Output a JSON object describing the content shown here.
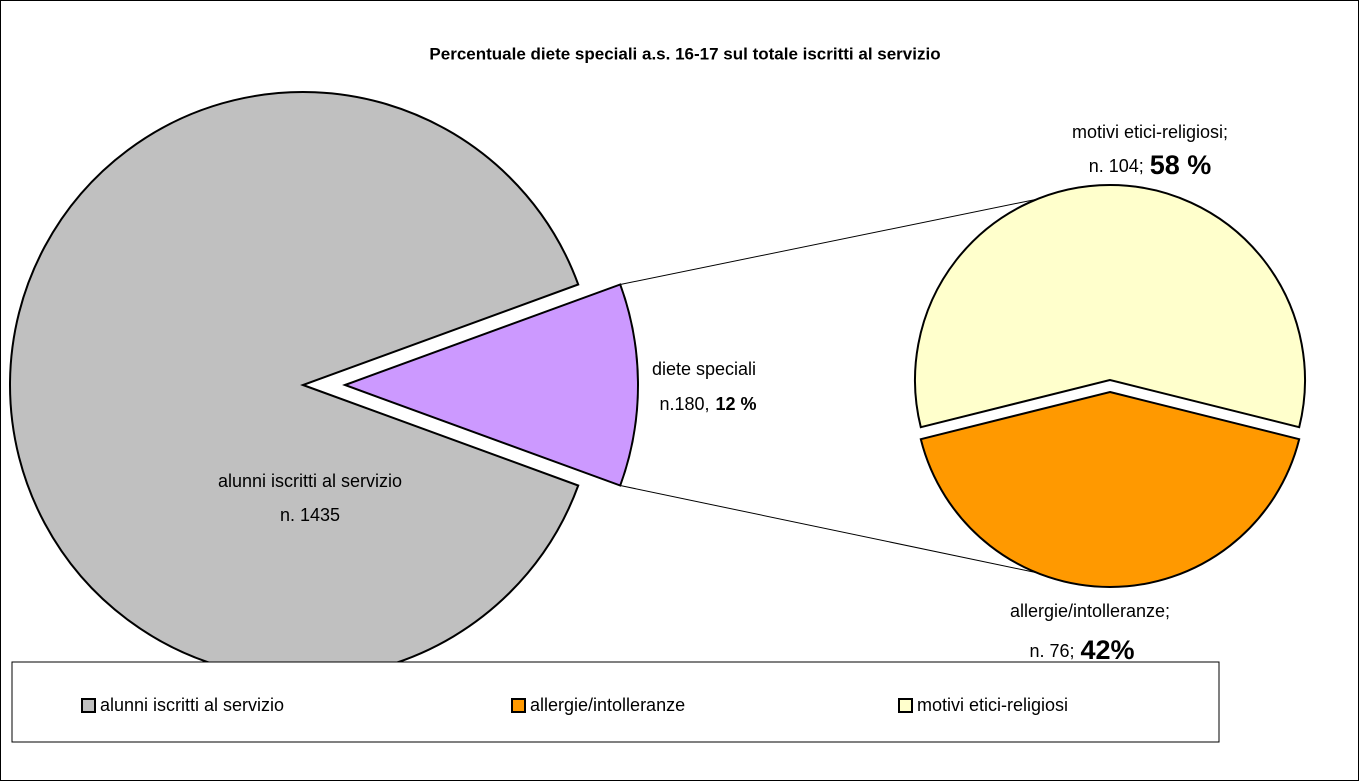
{
  "chart_data": {
    "type": "pie-of-pie",
    "title": "Percentuale diete speciali a.s. 16-17 sul totale iscritti al servizio",
    "pies": [
      {
        "slices": [
          {
            "name": "alunni iscritti al servizio",
            "value": 1435,
            "value_label": "n. 1435",
            "color": "#c0c0c0"
          },
          {
            "name": "diete speciali",
            "value": 180,
            "value_label": "n.180,",
            "percent": 12,
            "percent_label": "12 %",
            "color": "#cc99ff"
          }
        ]
      },
      {
        "slices": [
          {
            "name": "motivi etici-religiosi",
            "label": "motivi etici-religiosi;",
            "value": 104,
            "value_label": "n. 104;",
            "percent": 58,
            "percent_label": "58 %",
            "color": "#ffffcc"
          },
          {
            "name": "allergie/intolleranze",
            "label": "allergie/intolleranze;",
            "value": 76,
            "value_label": "n. 76;",
            "percent": 42,
            "percent_label": "42%",
            "color": "#ff9900"
          }
        ]
      }
    ]
  }
}
